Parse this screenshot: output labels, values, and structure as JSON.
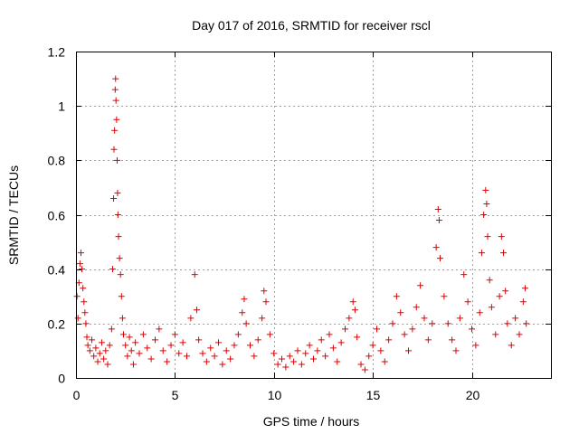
{
  "chart_data": {
    "type": "scatter",
    "title": "Day 017 of 2016, SRMTID for receiver rscl",
    "xlabel": "GPS time / hours",
    "ylabel": "SRMTID / TECUs",
    "xlim": [
      0,
      24
    ],
    "ylim": [
      0,
      1.2
    ],
    "xticks": [
      0,
      5,
      10,
      15,
      20
    ],
    "xtick_labels": [
      "0",
      "5",
      "10",
      "15",
      "20"
    ],
    "yticks": [
      0,
      0.2,
      0.4,
      0.6,
      0.8,
      1.0,
      1.2
    ],
    "ytick_labels": [
      "0",
      "0.2",
      "0.4",
      "0.6",
      "0.8",
      "1",
      "1.2"
    ],
    "grid": true,
    "marker": "+",
    "color": "#e00000",
    "series": [
      {
        "name": "SRMTID",
        "points": [
          [
            0.05,
            0.3
          ],
          [
            0.1,
            0.22
          ],
          [
            0.15,
            0.35
          ],
          [
            0.2,
            0.42
          ],
          [
            0.25,
            0.46
          ],
          [
            0.3,
            0.4
          ],
          [
            0.35,
            0.33
          ],
          [
            0.4,
            0.28
          ],
          [
            0.45,
            0.24
          ],
          [
            0.5,
            0.2
          ],
          [
            0.55,
            0.15
          ],
          [
            0.6,
            0.12
          ],
          [
            0.7,
            0.1
          ],
          [
            0.8,
            0.14
          ],
          [
            0.9,
            0.08
          ],
          [
            1.0,
            0.11
          ],
          [
            1.1,
            0.06
          ],
          [
            1.2,
            0.09
          ],
          [
            1.3,
            0.13
          ],
          [
            1.4,
            0.07
          ],
          [
            1.5,
            0.1
          ],
          [
            1.6,
            0.05
          ],
          [
            1.7,
            0.12
          ],
          [
            1.8,
            0.18
          ],
          [
            1.85,
            0.4
          ],
          [
            1.9,
            0.66
          ],
          [
            1.92,
            0.84
          ],
          [
            1.95,
            0.91
          ],
          [
            1.98,
            1.06
          ],
          [
            2.0,
            1.1
          ],
          [
            2.02,
            1.02
          ],
          [
            2.05,
            0.95
          ],
          [
            2.08,
            0.8
          ],
          [
            2.1,
            0.68
          ],
          [
            2.12,
            0.6
          ],
          [
            2.15,
            0.52
          ],
          [
            2.2,
            0.44
          ],
          [
            2.25,
            0.38
          ],
          [
            2.3,
            0.3
          ],
          [
            2.35,
            0.22
          ],
          [
            2.4,
            0.16
          ],
          [
            2.5,
            0.12
          ],
          [
            2.6,
            0.08
          ],
          [
            2.7,
            0.15
          ],
          [
            2.8,
            0.1
          ],
          [
            2.9,
            0.05
          ],
          [
            3.0,
            0.13
          ],
          [
            3.2,
            0.09
          ],
          [
            3.4,
            0.16
          ],
          [
            3.6,
            0.11
          ],
          [
            3.8,
            0.07
          ],
          [
            4.0,
            0.14
          ],
          [
            4.2,
            0.18
          ],
          [
            4.4,
            0.1
          ],
          [
            4.6,
            0.06
          ],
          [
            4.8,
            0.12
          ],
          [
            5.0,
            0.16
          ],
          [
            5.2,
            0.09
          ],
          [
            5.4,
            0.13
          ],
          [
            5.6,
            0.08
          ],
          [
            5.8,
            0.22
          ],
          [
            6.0,
            0.38
          ],
          [
            6.1,
            0.25
          ],
          [
            6.2,
            0.14
          ],
          [
            6.4,
            0.09
          ],
          [
            6.6,
            0.06
          ],
          [
            6.8,
            0.11
          ],
          [
            7.0,
            0.08
          ],
          [
            7.2,
            0.13
          ],
          [
            7.4,
            0.05
          ],
          [
            7.6,
            0.1
          ],
          [
            7.8,
            0.07
          ],
          [
            8.0,
            0.12
          ],
          [
            8.2,
            0.16
          ],
          [
            8.4,
            0.24
          ],
          [
            8.5,
            0.29
          ],
          [
            8.6,
            0.2
          ],
          [
            8.8,
            0.12
          ],
          [
            9.0,
            0.08
          ],
          [
            9.2,
            0.14
          ],
          [
            9.4,
            0.22
          ],
          [
            9.5,
            0.32
          ],
          [
            9.6,
            0.28
          ],
          [
            9.8,
            0.16
          ],
          [
            10.0,
            0.09
          ],
          [
            10.2,
            0.05
          ],
          [
            10.4,
            0.07
          ],
          [
            10.6,
            0.04
          ],
          [
            10.8,
            0.08
          ],
          [
            11.0,
            0.06
          ],
          [
            11.2,
            0.1
          ],
          [
            11.4,
            0.05
          ],
          [
            11.6,
            0.09
          ],
          [
            11.8,
            0.12
          ],
          [
            12.0,
            0.07
          ],
          [
            12.2,
            0.1
          ],
          [
            12.4,
            0.14
          ],
          [
            12.6,
            0.08
          ],
          [
            12.8,
            0.16
          ],
          [
            13.0,
            0.11
          ],
          [
            13.2,
            0.06
          ],
          [
            13.4,
            0.13
          ],
          [
            13.6,
            0.18
          ],
          [
            13.8,
            0.22
          ],
          [
            14.0,
            0.28
          ],
          [
            14.1,
            0.25
          ],
          [
            14.2,
            0.15
          ],
          [
            14.4,
            0.05
          ],
          [
            14.6,
            0.03
          ],
          [
            14.8,
            0.08
          ],
          [
            15.0,
            0.12
          ],
          [
            15.2,
            0.18
          ],
          [
            15.4,
            0.1
          ],
          [
            15.6,
            0.06
          ],
          [
            15.8,
            0.14
          ],
          [
            16.0,
            0.2
          ],
          [
            16.2,
            0.3
          ],
          [
            16.4,
            0.24
          ],
          [
            16.6,
            0.16
          ],
          [
            16.8,
            0.1
          ],
          [
            17.0,
            0.18
          ],
          [
            17.2,
            0.26
          ],
          [
            17.4,
            0.34
          ],
          [
            17.6,
            0.22
          ],
          [
            17.8,
            0.14
          ],
          [
            18.0,
            0.2
          ],
          [
            18.2,
            0.48
          ],
          [
            18.3,
            0.62
          ],
          [
            18.35,
            0.58
          ],
          [
            18.4,
            0.44
          ],
          [
            18.6,
            0.3
          ],
          [
            18.8,
            0.2
          ],
          [
            19.0,
            0.14
          ],
          [
            19.2,
            0.1
          ],
          [
            19.4,
            0.22
          ],
          [
            19.6,
            0.38
          ],
          [
            19.8,
            0.28
          ],
          [
            20.0,
            0.18
          ],
          [
            20.2,
            0.12
          ],
          [
            20.4,
            0.24
          ],
          [
            20.5,
            0.46
          ],
          [
            20.6,
            0.6
          ],
          [
            20.7,
            0.69
          ],
          [
            20.75,
            0.64
          ],
          [
            20.8,
            0.52
          ],
          [
            20.9,
            0.36
          ],
          [
            21.0,
            0.26
          ],
          [
            21.2,
            0.16
          ],
          [
            21.4,
            0.3
          ],
          [
            21.5,
            0.52
          ],
          [
            21.6,
            0.46
          ],
          [
            21.7,
            0.32
          ],
          [
            21.8,
            0.2
          ],
          [
            22.0,
            0.12
          ],
          [
            22.2,
            0.22
          ],
          [
            22.4,
            0.16
          ],
          [
            22.6,
            0.28
          ],
          [
            22.7,
            0.33
          ],
          [
            22.75,
            0.2
          ]
        ]
      }
    ]
  }
}
